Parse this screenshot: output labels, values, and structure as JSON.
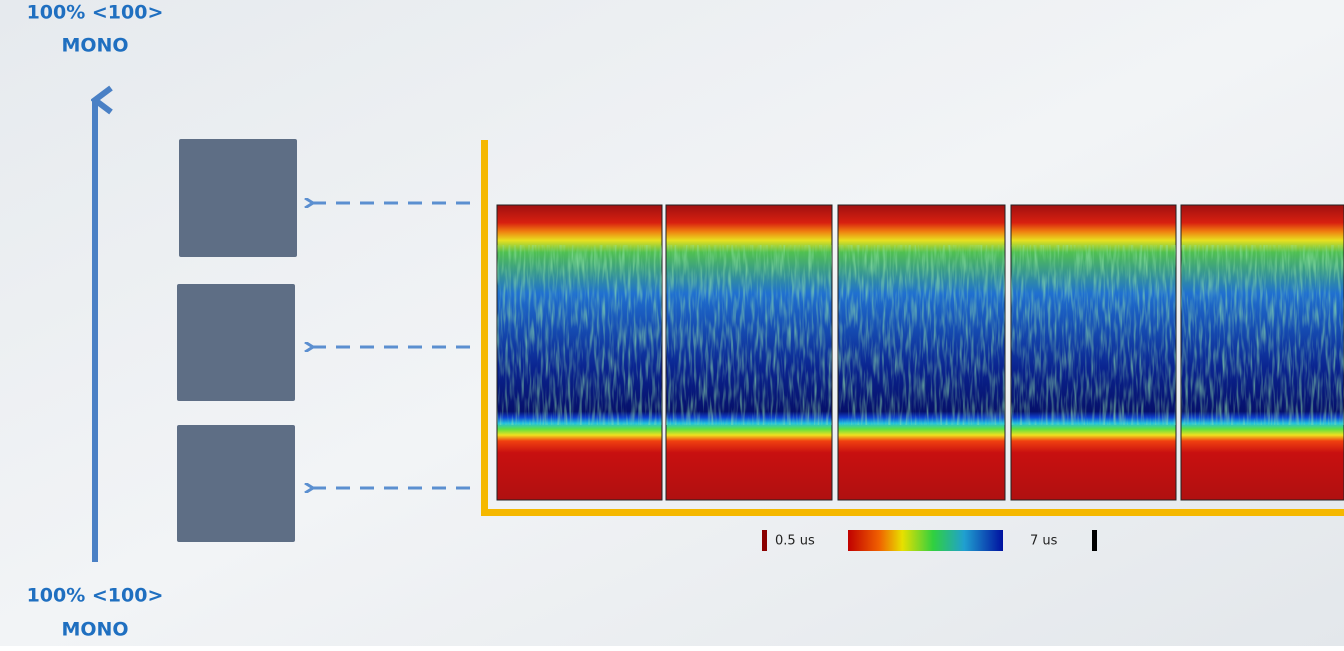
{
  "top_label": {
    "line1": "100% <100>",
    "line2": "MONO"
  },
  "bottom_label": {
    "line1": "100% <100>",
    "line2": "MONO"
  },
  "colorbar": {
    "min_label": "0.5 us",
    "max_label": "7 us"
  }
}
